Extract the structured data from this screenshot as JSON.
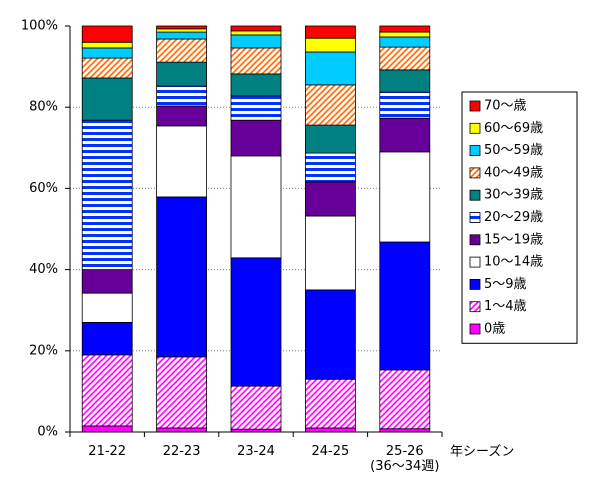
{
  "chart_data": {
    "type": "stacked_bar_100",
    "categories": [
      "21-22",
      "22-23",
      "23-24",
      "24-25",
      "25-26\n(36～34週)"
    ],
    "x_label": "年シーズン",
    "ylim": [
      0,
      100
    ],
    "yticks": [
      {
        "value": 0,
        "label": "0%"
      },
      {
        "value": 20,
        "label": "20%"
      },
      {
        "value": 40,
        "label": "40%"
      },
      {
        "value": 60,
        "label": "60%"
      },
      {
        "value": 80,
        "label": "80%"
      },
      {
        "value": 100,
        "label": "100%"
      }
    ],
    "grid": true,
    "series": [
      {
        "name": "0歳",
        "color": "#ff00ff",
        "pattern": "solid",
        "values": [
          1.5,
          1,
          0.7,
          1,
          0.8
        ]
      },
      {
        "name": "1～4歳",
        "color": "#ff00ff",
        "pattern": "diagonal",
        "values": [
          17.5,
          17.5,
          10.6,
          12,
          14.5
        ]
      },
      {
        "name": "5～9歳",
        "color": "#0000ff",
        "pattern": "solid",
        "values": [
          8,
          39.4,
          31.6,
          22,
          31.5
        ]
      },
      {
        "name": "10～14歳",
        "color": "#ffffff",
        "pattern": "solid",
        "values": [
          7.2,
          17.5,
          25.1,
          18.2,
          22.2
        ]
      },
      {
        "name": "15～19歳",
        "color": "#660099",
        "pattern": "solid",
        "values": [
          5.8,
          4.9,
          8.8,
          8.4,
          8.3
        ]
      },
      {
        "name": "20～29歳",
        "color": "#0033ff",
        "pattern": "hstripe",
        "values": [
          36.8,
          4.9,
          6,
          7.1,
          6.4
        ]
      },
      {
        "name": "30～39歳",
        "color": "#008080",
        "pattern": "solid",
        "values": [
          10.4,
          5.9,
          5.4,
          6.9,
          5.5
        ]
      },
      {
        "name": "40～49歳",
        "color": "#ff6600",
        "pattern": "diagonal",
        "values": [
          4.9,
          5.7,
          6.4,
          9.9,
          5.6
        ]
      },
      {
        "name": "50～59歳",
        "color": "#00ccff",
        "pattern": "solid",
        "values": [
          2.5,
          1.7,
          3.2,
          8.1,
          2.5
        ]
      },
      {
        "name": "60～69歳",
        "color": "#ffff00",
        "pattern": "solid",
        "values": [
          1.4,
          0.8,
          1,
          3.4,
          1.2
        ]
      },
      {
        "name": "70～歳",
        "color": "#ff0000",
        "pattern": "solid",
        "values": [
          4,
          0.7,
          1.2,
          3,
          1.5
        ]
      }
    ]
  }
}
